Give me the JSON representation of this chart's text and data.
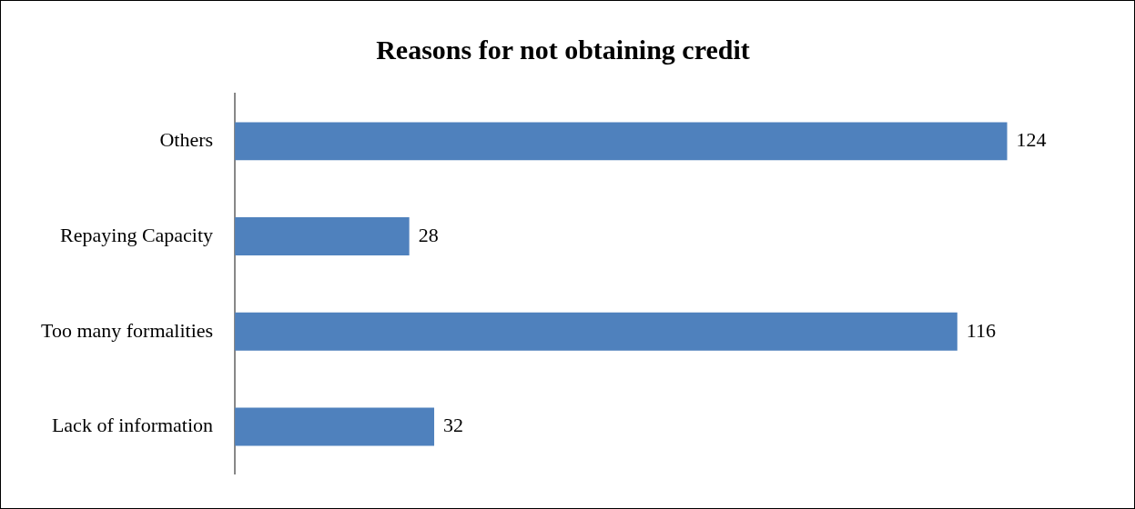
{
  "chart_data": {
    "type": "bar",
    "orientation": "horizontal",
    "title": "Reasons for not obtaining credit",
    "categories": [
      "Others",
      "Repaying Capacity",
      "Too many formalities",
      "Lack of information"
    ],
    "values": [
      124,
      28,
      116,
      32
    ],
    "color": "#4f81bd",
    "data_labels": true,
    "legend": false
  }
}
